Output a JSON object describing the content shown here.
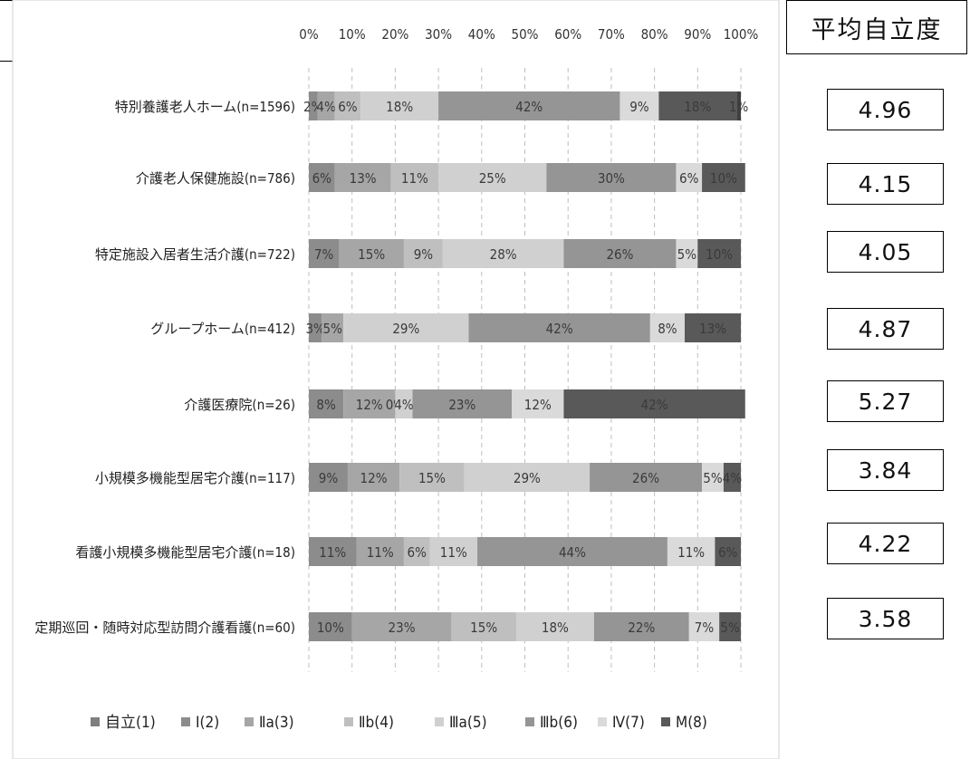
{
  "chart_data": {
    "type": "bar",
    "orientation": "horizontal",
    "stacked": true,
    "percent": true,
    "xlim": [
      0,
      100
    ],
    "x_ticks": [
      "0%",
      "10%",
      "20%",
      "30%",
      "40%",
      "50%",
      "60%",
      "70%",
      "80%",
      "90%",
      "100%"
    ],
    "axis_position": "top",
    "grid": "vertical-dashed",
    "legend_position": "bottom",
    "categories": [
      "特別養護老人ホーム(n=1596)",
      "介護老人保健施設(n=786)",
      "特定施設入居者生活介護(n=722)",
      "グループホーム(n=412)",
      "介護医療院(n=26)",
      "小規模多機能型居宅介護(n=117)",
      "看護小規模多機能型居宅介護(n=18)",
      "定期巡回・随時対応型訪問介護看護(n=60)"
    ],
    "series": [
      {
        "name": "自立(1)",
        "color": "#7f7f7f",
        "values": [
          0,
          0,
          0,
          0,
          0,
          0,
          0,
          0
        ]
      },
      {
        "name": "Ⅰ(2)",
        "color": "#8c8c8c",
        "values": [
          2,
          6,
          7,
          3,
          8,
          9,
          11,
          10
        ]
      },
      {
        "name": "Ⅱa(3)",
        "color": "#a6a6a6",
        "values": [
          4,
          13,
          15,
          5,
          12,
          12,
          11,
          23
        ]
      },
      {
        "name": "Ⅱb(4)",
        "color": "#bfbfbf",
        "values": [
          6,
          11,
          9,
          0,
          0,
          15,
          6,
          15
        ]
      },
      {
        "name": "Ⅲa(5)",
        "color": "#d0d0d0",
        "values": [
          18,
          25,
          28,
          29,
          4,
          29,
          11,
          18
        ]
      },
      {
        "name": "Ⅲb(6)",
        "color": "#959595",
        "values": [
          42,
          30,
          26,
          42,
          23,
          26,
          44,
          22
        ]
      },
      {
        "name": "Ⅳ(7)",
        "color": "#dadada",
        "values": [
          9,
          6,
          5,
          8,
          12,
          5,
          11,
          7
        ]
      },
      {
        "name": "M(8)",
        "color": "#595959",
        "values": [
          18,
          10,
          10,
          13,
          42,
          4,
          6,
          5
        ]
      },
      {
        "name": "_extra",
        "color": "#404040",
        "values": [
          1,
          0,
          0,
          0,
          0,
          0,
          0,
          0
        ]
      }
    ],
    "labels": [
      [
        "",
        "2%",
        "4%",
        "6%",
        "18%",
        "42%",
        "9%",
        "18%",
        "1%"
      ],
      [
        "",
        "6%",
        "13%",
        "11%",
        "25%",
        "30%",
        "6%",
        "10%",
        ""
      ],
      [
        "",
        "7%",
        "15%",
        "9%",
        "28%",
        "26%",
        "5%",
        "10%",
        ""
      ],
      [
        "",
        "3%",
        "5%",
        "",
        "29%",
        "42%",
        "8%",
        "13%",
        ""
      ],
      [
        "",
        "8%",
        "12%",
        "0%",
        "4%",
        "23%",
        "12%",
        "42%",
        ""
      ],
      [
        "",
        "9%",
        "12%",
        "15%",
        "29%",
        "26%",
        "5%",
        "4%",
        ""
      ],
      [
        "",
        "11%",
        "11%",
        "6%",
        "11%",
        "44%",
        "11%",
        "6%",
        ""
      ],
      [
        "",
        "10%",
        "23%",
        "15%",
        "18%",
        "22%",
        "7%",
        "5%",
        ""
      ]
    ]
  },
  "side_panel": {
    "header": "平均自立度",
    "averages": [
      "4.96",
      "4.15",
      "4.05",
      "4.87",
      "5.27",
      "3.84",
      "4.22",
      "3.58"
    ]
  }
}
